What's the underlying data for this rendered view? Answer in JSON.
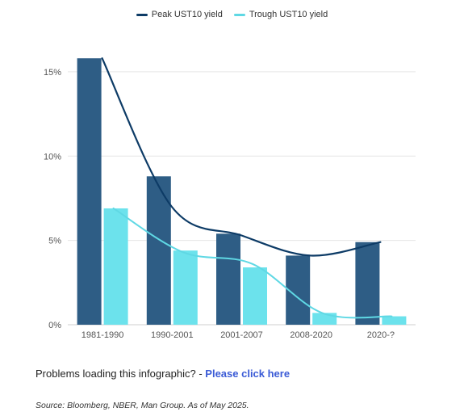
{
  "legend": {
    "peak_label": "Peak UST10 yield",
    "trough_label": "Trough UST10 yield"
  },
  "colors": {
    "peak_bar": "#2e5d85",
    "peak_line": "#0d3b66",
    "trough_bar": "#6ce2ec",
    "trough_line": "#5fd8e4",
    "grid": "#e6e6e6"
  },
  "chart_data": {
    "type": "bar",
    "categories": [
      "1981-1990",
      "1990-2001",
      "2001-2007",
      "2008-2020",
      "2020-?"
    ],
    "series": [
      {
        "name": "Peak UST10 yield",
        "values": [
          15.8,
          8.8,
          5.4,
          4.1,
          4.9
        ]
      },
      {
        "name": "Trough UST10 yield",
        "values": [
          6.9,
          4.4,
          3.4,
          0.7,
          0.5
        ]
      }
    ],
    "trend_lines": [
      {
        "series": "Peak UST10 yield",
        "values": [
          15.8,
          7.0,
          5.3,
          4.1,
          4.9
        ]
      },
      {
        "series": "Trough UST10 yield",
        "values": [
          6.9,
          4.3,
          3.6,
          0.7,
          0.5
        ]
      }
    ],
    "yticks": [
      "0%",
      "5%",
      "10%",
      "15%"
    ],
    "ylim": [
      0,
      16
    ],
    "grid": true,
    "legend_position": "top-center"
  },
  "footer": {
    "problem_text": "Problems loading this infographic? - ",
    "link_text": "Please click here",
    "source": "Source: Bloomberg, NBER, Man Group. As of May 2025."
  }
}
